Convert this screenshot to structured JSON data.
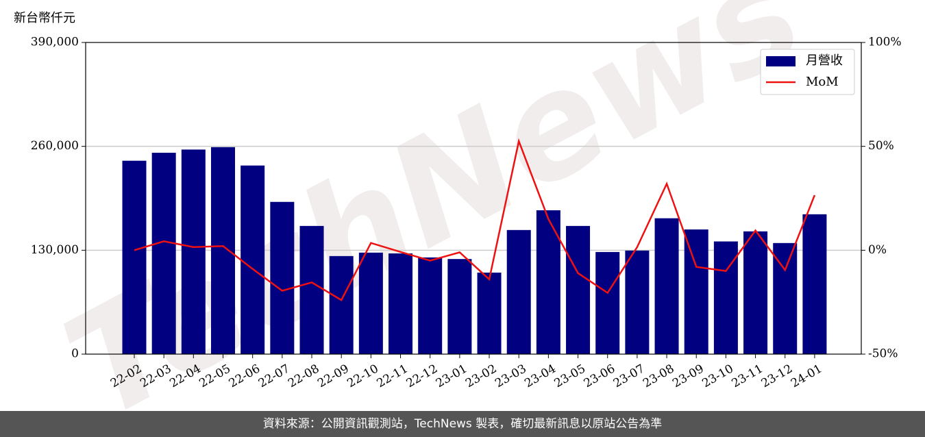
{
  "chart_data": {
    "type": "bar_line",
    "y_label": "新台幣仟元",
    "watermark": "TechNews",
    "categories": [
      "22-02",
      "22-03",
      "22-04",
      "22-05",
      "22-06",
      "22-07",
      "22-08",
      "22-09",
      "22-10",
      "22-11",
      "22-12",
      "23-01",
      "23-02",
      "23-03",
      "23-04",
      "23-05",
      "23-06",
      "23-07",
      "23-08",
      "23-09",
      "23-10",
      "23-11",
      "23-12",
      "24-01"
    ],
    "series": [
      {
        "name": "月營收",
        "type": "bar",
        "color": "#000080",
        "values": [
          242000,
          252000,
          256000,
          259000,
          236000,
          190500,
          160400,
          122700,
          127000,
          126000,
          121000,
          119000,
          102000,
          155300,
          180000,
          160400,
          127800,
          129600,
          170000,
          156000,
          141000,
          153600,
          139000,
          175000
        ]
      },
      {
        "name": "MoM",
        "type": "line",
        "axis": "y2",
        "color": "#ee1111",
        "values": [
          0,
          4.3,
          1.5,
          2,
          -9,
          -19.5,
          -15.5,
          -24,
          3.5,
          -0.8,
          -5,
          -1,
          -14,
          52.5,
          15,
          -11,
          -20.5,
          1.5,
          32,
          -8,
          -10,
          9.5,
          -9.5,
          26.5
        ]
      }
    ],
    "ylim": [
      0,
      390000
    ],
    "yticks": [
      0,
      {
        "value": 130000,
        "label": "130,000"
      },
      {
        "value": 260000,
        "label": "260,000"
      },
      {
        "value": 390000,
        "label": "390,000"
      }
    ],
    "y2lim": [
      -50,
      100
    ],
    "y2ticks": [
      {
        "value": -50,
        "label": "-50%"
      },
      {
        "value": 0,
        "label": "0%"
      },
      {
        "value": 50,
        "label": "50%"
      },
      {
        "value": 100,
        "label": "100%"
      }
    ],
    "grid": true,
    "legend": "upper right",
    "footer": "資料來源：公開資訊觀測站，TechNews 製表，確切最新訊息以原站公告為準"
  }
}
